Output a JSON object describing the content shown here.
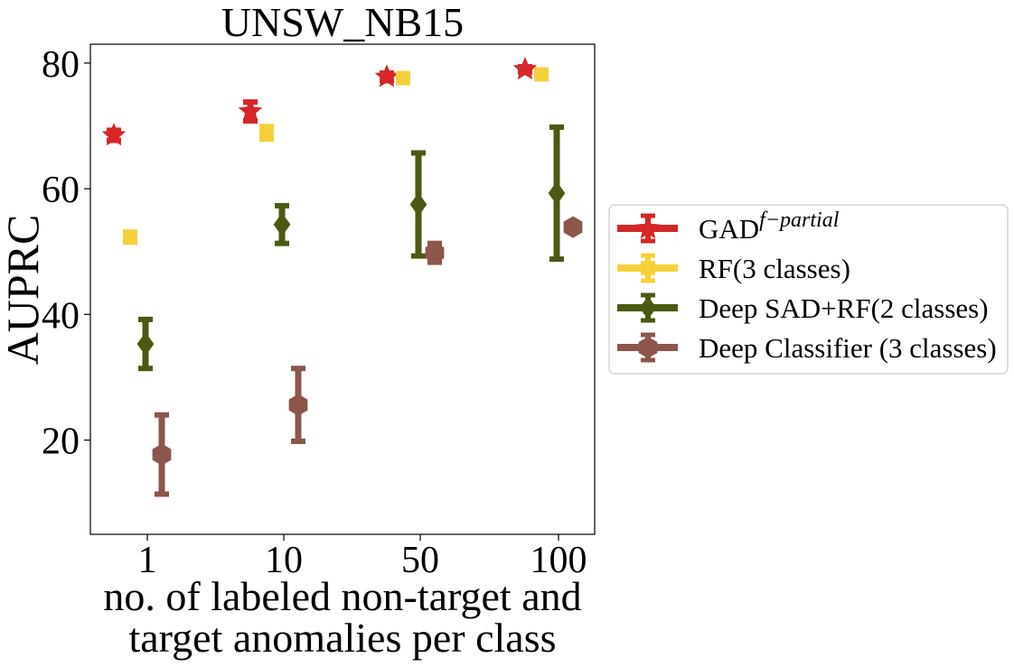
{
  "chart_data": {
    "type": "scatter",
    "title": "UNSW_NB15",
    "ylabel": "AUPRC",
    "xlabel_lines": [
      "no. of labeled non-target and",
      "target anomalies per class"
    ],
    "categories": [
      "1",
      "10",
      "50",
      "100"
    ],
    "ylim": [
      5,
      83
    ],
    "yticks": [
      20,
      40,
      60,
      80
    ],
    "grid": false,
    "legend_placement": "right",
    "series": [
      {
        "name": "GAD",
        "name_sup": "f−partial",
        "color": "#d62728",
        "marker": "star",
        "values": [
          68.5,
          72.3,
          77.8,
          79.0
        ],
        "errors": [
          0.8,
          1.5,
          0.6,
          0.4
        ]
      },
      {
        "name": "RF(3 classes)",
        "color": "#f5d03a",
        "marker": "square",
        "values": [
          52.3,
          68.9,
          77.6,
          78.2
        ],
        "errors": [
          0.8,
          1.0,
          0.5,
          0.5
        ]
      },
      {
        "name": "Deep SAD+RF(2 classes)",
        "color": "#4a5a12",
        "marker": "diamond",
        "values": [
          35.3,
          54.3,
          57.5,
          59.3
        ],
        "errors": [
          3.9,
          3.0,
          8.2,
          10.5
        ]
      },
      {
        "name": "Deep Classifier (3 classes)",
        "color": "#8c564b",
        "marker": "hexagon",
        "values": [
          17.7,
          25.6,
          49.8,
          53.9
        ],
        "errors": [
          6.3,
          5.8,
          1.5,
          0.6
        ]
      }
    ]
  }
}
